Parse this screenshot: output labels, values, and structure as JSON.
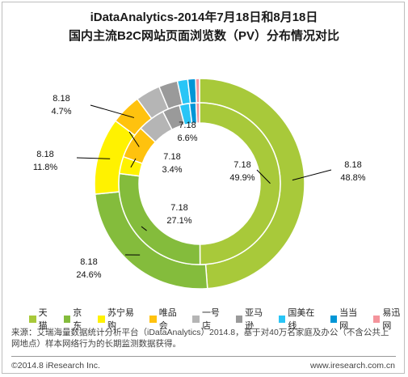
{
  "title_line1": "iDataAnalytics-2014年7月18日和8月18日",
  "title_line2": "国内主流B2C网站页面浏览数（PV）分布情况对比",
  "chart_data": {
    "type": "pie",
    "subtype": "nested-donut",
    "inner_ring": "7.18",
    "outer_ring": "8.18",
    "categories": [
      "天猫",
      "京东",
      "苏宁易购",
      "唯品会",
      "一号店",
      "亚马逊",
      "国美在线",
      "当当网",
      "易迅网"
    ],
    "colors": [
      "#a8c93a",
      "#84bc3c",
      "#fff200",
      "#ffc20e",
      "#b5b5b5",
      "#9a9a9a",
      "#29c5f6",
      "#0096d6",
      "#f4949c"
    ],
    "series": [
      {
        "name": "7.18",
        "values": [
          49.9,
          27.1,
          3.4,
          6.6,
          5.5,
          3.5,
          2.0,
          1.3,
          0.7
        ]
      },
      {
        "name": "8.18",
        "values": [
          48.8,
          24.6,
          11.8,
          4.7,
          3.8,
          2.9,
          1.6,
          1.2,
          0.6
        ]
      }
    ],
    "data_labels": [
      {
        "ring": "7.18",
        "category": "天猫",
        "text": "49.9%"
      },
      {
        "ring": "8.18",
        "category": "天猫",
        "text": "48.8%"
      },
      {
        "ring": "7.18",
        "category": "京东",
        "text": "27.1%"
      },
      {
        "ring": "8.18",
        "category": "京东",
        "text": "24.6%"
      },
      {
        "ring": "7.18",
        "category": "苏宁易购",
        "text": "3.4%"
      },
      {
        "ring": "8.18",
        "category": "苏宁易购",
        "text": "11.8%"
      },
      {
        "ring": "7.18",
        "category": "唯品会",
        "text": "6.6%"
      },
      {
        "ring": "8.18",
        "category": "唯品会",
        "text": "4.7%"
      }
    ],
    "legend": "bottom"
  },
  "source_text": "来源：艾瑞海量数据统计分析平台（iDataAnalytics）2014.8，基于对40万名家庭及办公（不含公共上网地点）样本网络行为的长期监测数据获得。",
  "footer_left": "©2014.8 iResearch Inc.",
  "footer_right": "www.iresearch.com.cn"
}
